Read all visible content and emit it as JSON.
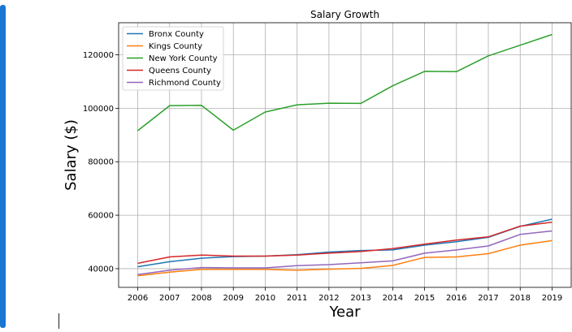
{
  "chart_data": {
    "type": "line",
    "title": "Salary Growth",
    "xlabel": "Year",
    "ylabel": "Salary ($)",
    "x": [
      2006,
      2007,
      2008,
      2009,
      2010,
      2011,
      2012,
      2013,
      2014,
      2015,
      2016,
      2017,
      2018,
      2019
    ],
    "xlim": [
      2005.4,
      2019.6
    ],
    "ylim": [
      33000,
      132000
    ],
    "yticks": [
      40000,
      60000,
      80000,
      100000,
      120000
    ],
    "grid": true,
    "legend_position": "top-left",
    "series": [
      {
        "name": "Bronx County",
        "color": "#1f77b4",
        "values": [
          40700,
          42600,
          43900,
          44500,
          44700,
          45200,
          46200,
          46800,
          47000,
          48800,
          50100,
          51700,
          55800,
          58500
        ]
      },
      {
        "name": "Kings County",
        "color": "#ff7f0e",
        "values": [
          37300,
          38700,
          39700,
          39700,
          39700,
          39400,
          39800,
          40100,
          41200,
          44200,
          44400,
          45600,
          48800,
          50500
        ]
      },
      {
        "name": "New York County",
        "color": "#2ca02c",
        "values": [
          91600,
          101000,
          101100,
          91800,
          98600,
          101300,
          101900,
          101800,
          108400,
          113800,
          113700,
          119600,
          123600,
          127600
        ]
      },
      {
        "name": "Queens County",
        "color": "#d62728",
        "values": [
          42000,
          44400,
          45100,
          44700,
          44700,
          45100,
          45800,
          46400,
          47500,
          49200,
          50700,
          51900,
          55900,
          57400
        ]
      },
      {
        "name": "Richmond County",
        "color": "#9467bd",
        "values": [
          37800,
          39400,
          40400,
          40300,
          40300,
          41100,
          41500,
          42200,
          42900,
          45800,
          47000,
          48500,
          52800,
          54100
        ]
      }
    ]
  }
}
